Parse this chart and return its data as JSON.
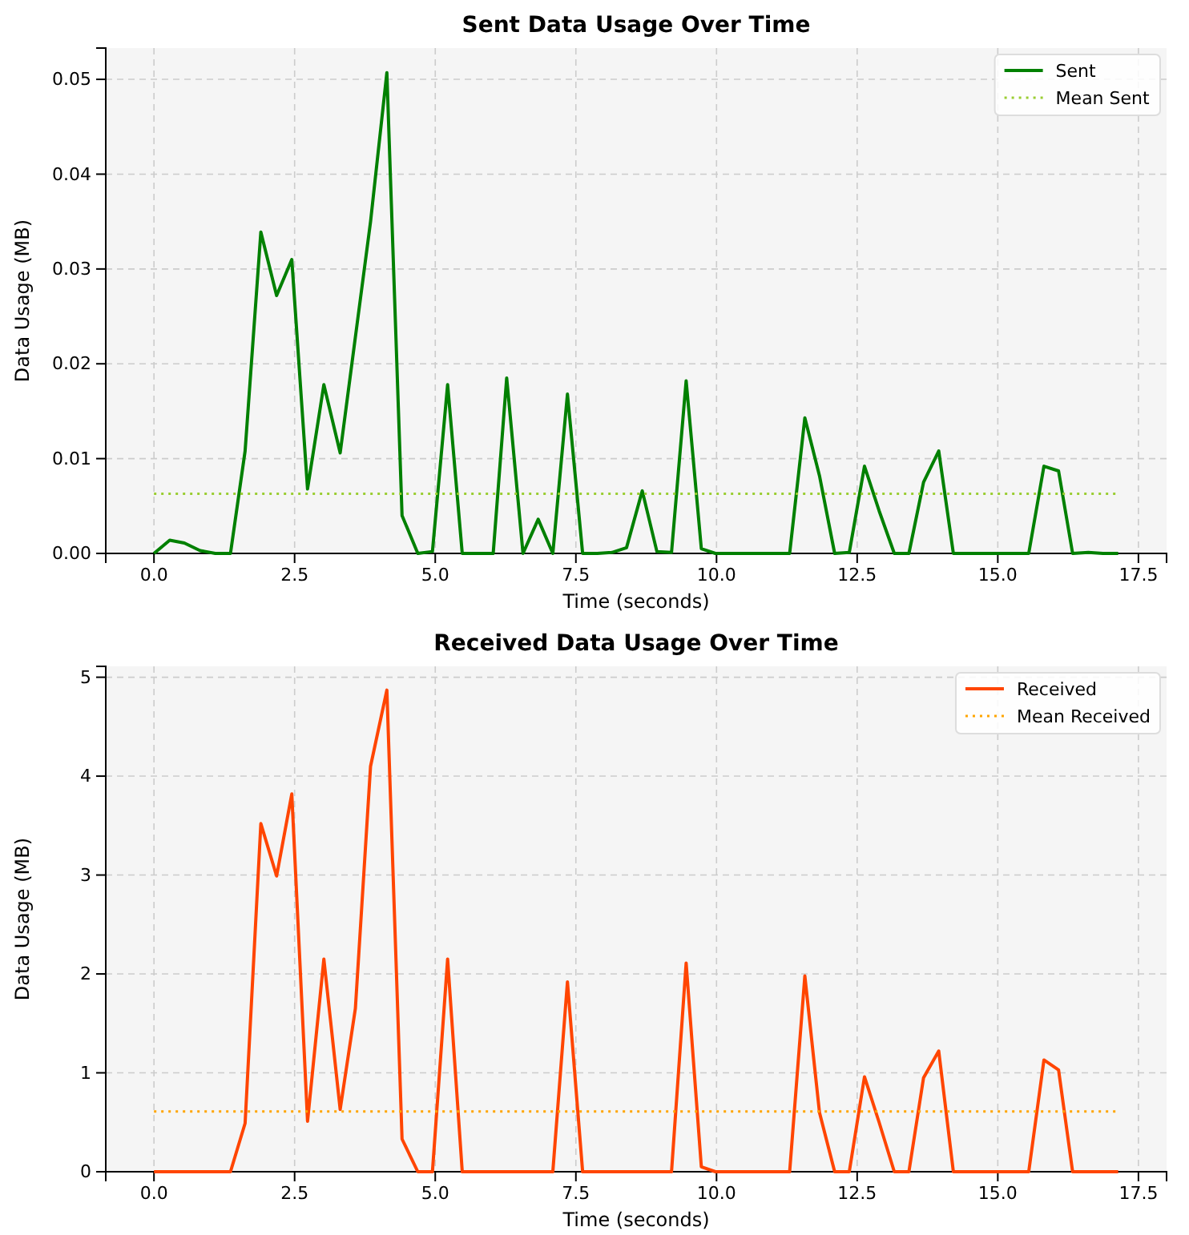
{
  "chart_data": [
    {
      "type": "line",
      "title": "Sent Data Usage Over Time",
      "xlabel": "Time (seconds)",
      "ylabel": "Data Usage (MB)",
      "x": [
        0,
        0.28,
        0.54,
        0.82,
        1.09,
        1.36,
        1.62,
        1.9,
        2.18,
        2.45,
        2.73,
        3.02,
        3.31,
        3.58,
        3.85,
        4.14,
        4.41,
        4.69,
        4.95,
        5.22,
        5.48,
        5.76,
        6.03,
        6.27,
        6.56,
        6.83,
        7.09,
        7.35,
        7.62,
        7.88,
        8.14,
        8.4,
        8.68,
        8.94,
        9.2,
        9.46,
        9.73,
        9.98,
        10.25,
        10.51,
        10.78,
        11.04,
        11.3,
        11.57,
        11.83,
        12.1,
        12.36,
        12.63,
        12.89,
        13.16,
        13.42,
        13.68,
        13.95,
        14.21,
        14.48,
        14.75,
        15.02,
        15.28,
        15.55,
        15.82,
        16.08,
        16.33,
        16.61,
        16.87,
        17.14
      ],
      "series": [
        {
          "name": "Sent",
          "color": "#008000",
          "values": [
            0,
            0.0014,
            0.0011,
            0.0003,
            0,
            0,
            0.0108,
            0.0339,
            0.0272,
            0.031,
            0.0068,
            0.0178,
            0.0106,
            0.0228,
            0.035,
            0.0507,
            0.004,
            0,
            0.0002,
            0.0178,
            0,
            0,
            0,
            0.0185,
            0,
            0.0036,
            0,
            0.0168,
            0,
            0,
            0.0001,
            0.0006,
            0.0066,
            0.0002,
            0.0001,
            0.0182,
            0.0005,
            0,
            0,
            0,
            0,
            0,
            0,
            0.0143,
            0.0082,
            0,
            0.0001,
            0.0092,
            0.0045,
            0,
            0,
            0.0075,
            0.0108,
            0,
            0,
            0,
            0,
            0,
            0,
            0.0092,
            0.0087,
            0,
            0.0001,
            0,
            0
          ]
        }
      ],
      "ref_lines": [
        {
          "axis": "y",
          "value": 0.0063,
          "label": "Mean Sent",
          "color": "#9acd32",
          "line_style": "dotted"
        }
      ],
      "xlim": [
        -0.857,
        18
      ],
      "xticks": [
        {
          "value": 0,
          "label": "0.0"
        },
        2.5,
        {
          "value": 5,
          "label": "5.0"
        },
        7.5,
        {
          "value": 10,
          "label": "10.0"
        },
        12.5,
        {
          "value": 15,
          "label": "15.0"
        },
        17.5
      ],
      "ylim": [
        0,
        0.0533
      ],
      "yticks": [
        {
          "value": 0,
          "label": "0.00"
        },
        {
          "value": 0.01,
          "label": "0.01"
        },
        {
          "value": 0.02,
          "label": "0.02"
        },
        {
          "value": 0.03,
          "label": "0.03"
        },
        {
          "value": 0.04,
          "label": "0.04"
        },
        {
          "value": 0.05,
          "label": "0.05"
        }
      ],
      "grid": true,
      "legend": "top right",
      "line_style": "solid",
      "marker": "none"
    },
    {
      "type": "line",
      "title": "Received Data Usage Over Time",
      "xlabel": "Time (seconds)",
      "ylabel": "Data Usage (MB)",
      "x": [
        0,
        0.28,
        0.54,
        0.82,
        1.09,
        1.36,
        1.62,
        1.9,
        2.18,
        2.45,
        2.73,
        3.02,
        3.31,
        3.58,
        3.85,
        4.14,
        4.41,
        4.69,
        4.95,
        5.22,
        5.48,
        5.76,
        6.03,
        6.27,
        6.56,
        6.83,
        7.09,
        7.35,
        7.62,
        7.88,
        8.14,
        8.4,
        8.68,
        8.94,
        9.2,
        9.46,
        9.73,
        9.98,
        10.25,
        10.51,
        10.78,
        11.04,
        11.3,
        11.57,
        11.83,
        12.1,
        12.36,
        12.63,
        12.89,
        13.16,
        13.42,
        13.68,
        13.95,
        14.21,
        14.48,
        14.75,
        15.02,
        15.28,
        15.55,
        15.82,
        16.08,
        16.33,
        16.61,
        16.87,
        17.14
      ],
      "series": [
        {
          "name": "Received",
          "color": "#ff4500",
          "values": [
            0,
            0,
            0,
            0,
            0,
            0,
            0.49,
            3.52,
            2.99,
            3.82,
            0.51,
            2.15,
            0.63,
            1.65,
            4.1,
            4.87,
            0.33,
            0,
            0,
            2.15,
            0,
            0,
            0,
            0,
            0,
            0,
            0,
            1.92,
            0,
            0,
            0,
            0,
            0,
            0,
            0,
            2.11,
            0.05,
            0,
            0,
            0,
            0,
            0,
            0,
            1.98,
            0.6,
            0,
            0,
            0.96,
            0.5,
            0,
            0,
            0.95,
            1.22,
            0,
            0,
            0,
            0,
            0,
            0,
            1.13,
            1.03,
            0,
            0,
            0,
            0
          ]
        }
      ],
      "ref_lines": [
        {
          "axis": "y",
          "value": 0.61,
          "label": "Mean Received",
          "color": "#ffa500",
          "line_style": "dotted"
        }
      ],
      "xlim": [
        -0.857,
        18
      ],
      "xticks": [
        {
          "value": 0,
          "label": "0.0"
        },
        2.5,
        {
          "value": 5,
          "label": "5.0"
        },
        7.5,
        {
          "value": 10,
          "label": "10.0"
        },
        12.5,
        {
          "value": 15,
          "label": "15.0"
        },
        17.5
      ],
      "ylim": [
        0,
        5.11
      ],
      "yticks": [
        0,
        1,
        2,
        3,
        4,
        5
      ],
      "grid": true,
      "legend": "top right",
      "line_style": "solid",
      "marker": "none"
    }
  ]
}
